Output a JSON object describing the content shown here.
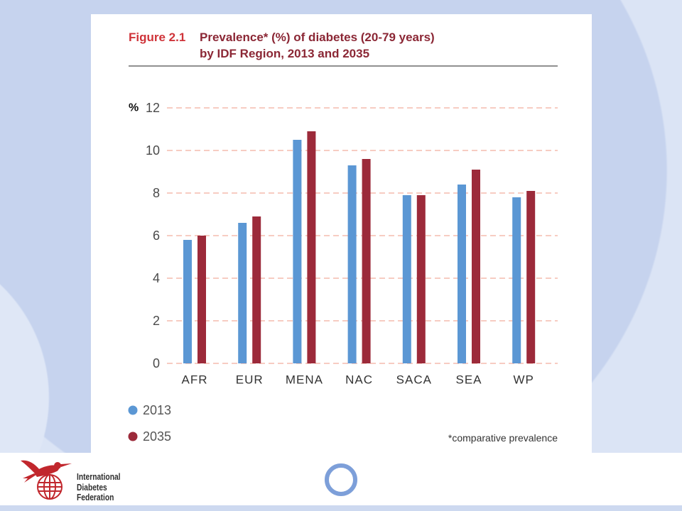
{
  "chart_data": {
    "type": "bar",
    "figure_label": "Figure 2.1",
    "title_lines": [
      "Prevalence* (%) of diabetes (20-79 years)",
      "by IDF Region, 2013 and 2035"
    ],
    "ylabel": "%",
    "xlabel": "",
    "ylim": [
      0,
      12
    ],
    "yticks": [
      0,
      2,
      4,
      6,
      8,
      10,
      12
    ],
    "grid": true,
    "legend": "bottom-left",
    "categories": [
      "AFR",
      "EUR",
      "MENA",
      "NAC",
      "SACA",
      "SEA",
      "WP"
    ],
    "series": [
      {
        "name": "2013",
        "color": "#5b97d4",
        "values": [
          5.8,
          6.6,
          10.5,
          9.3,
          7.9,
          8.4,
          7.8
        ]
      },
      {
        "name": "2035",
        "color": "#9c2a3a",
        "values": [
          6.0,
          6.9,
          10.9,
          9.6,
          7.9,
          9.1,
          8.1
        ]
      }
    ],
    "footnote": "*comparative prevalence"
  },
  "logo": {
    "icon": "hummingbird-globe-icon",
    "name_lines": [
      "International",
      "Diabetes",
      "Federation"
    ],
    "color": "#c1272d"
  },
  "decor": {
    "ring_icon": "circle-ring-icon",
    "ring_color": "#7d9fd9"
  }
}
